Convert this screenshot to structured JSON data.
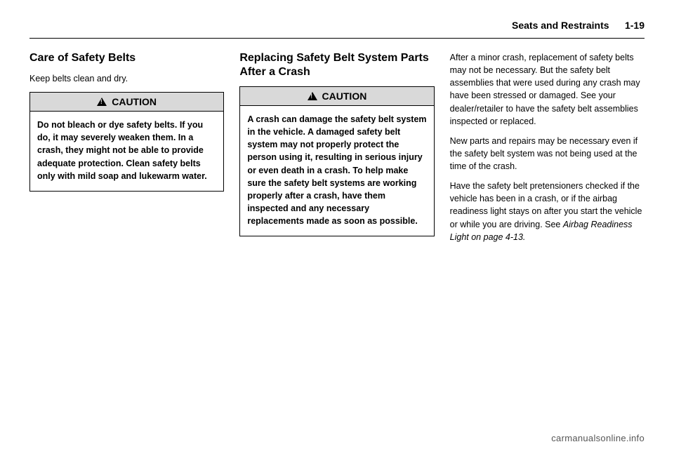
{
  "header": {
    "section": "Seats and Restraints",
    "page": "1-19"
  },
  "col1": {
    "title": "Care of Safety Belts",
    "intro": "Keep belts clean and dry.",
    "caution_label": "CAUTION",
    "caution_body": "Do not bleach or dye safety belts. If you do, it may severely weaken them. In a crash, they might not be able to provide adequate protection. Clean safety belts only with mild soap and lukewarm water."
  },
  "col2": {
    "title": "Replacing Safety Belt System Parts After a Crash",
    "caution_label": "CAUTION",
    "caution_body": "A crash can damage the safety belt system in the vehicle. A damaged safety belt system may not properly protect the person using it, resulting in serious injury or even death in a crash. To help make sure the safety belt systems are working properly after a crash, have them inspected and any necessary replacements made as soon as possible."
  },
  "col3": {
    "p1": "After a minor crash, replacement of safety belts may not be necessary. But the safety belt assemblies that were used during any crash may have been stressed or damaged. See your dealer/retailer to have the safety belt assemblies inspected or replaced.",
    "p2": "New parts and repairs may be necessary even if the safety belt system was not being used at the time of the crash.",
    "p3a": "Have the safety belt pretensioners checked if the vehicle has been in a crash, or if the airbag readiness light stays on after you start the vehicle or while you are driving. See ",
    "p3b": "Airbag Readiness Light on page 4-13."
  },
  "watermark": "carmanualsonline.info"
}
